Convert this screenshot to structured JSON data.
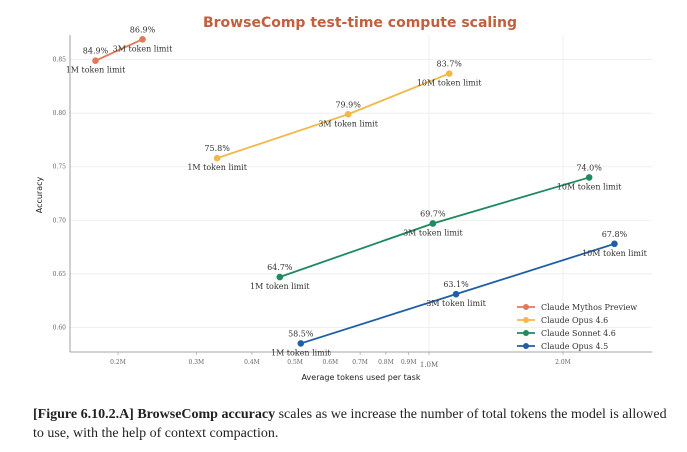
{
  "chart_data": {
    "type": "line",
    "title": "BrowseComp test-time compute scaling",
    "xlabel": "Average tokens used per task",
    "ylabel": "Accuracy",
    "xscale": "log",
    "xlim": [
      0.156,
      3.17
    ],
    "ylim": [
      0.577,
      0.873
    ],
    "x_ticks": [
      0.2,
      0.3,
      0.4,
      0.5,
      0.6,
      0.7,
      0.8,
      0.9,
      1.0,
      2.0
    ],
    "x_tick_labels": [
      "0.2M",
      "0.3M",
      "0.4M",
      "0.5M",
      "0.6M",
      "0.7M",
      "0.8M",
      "0.9M",
      "1.0M",
      "2.0M"
    ],
    "y_ticks": [
      0.6,
      0.65,
      0.7,
      0.75,
      0.8,
      0.85
    ],
    "y_tick_labels": [
      "0.60",
      "0.65",
      "0.70",
      "0.75",
      "0.80",
      "0.85"
    ],
    "grid": true,
    "legend_position": "bottom-right",
    "series": [
      {
        "name": "Claude Mythos Preview",
        "color": "#e07a5a",
        "x": [
          0.178,
          0.227
        ],
        "y": [
          0.849,
          0.869
        ],
        "value_labels": [
          "84.9%",
          "86.9%"
        ],
        "point_labels": [
          "1M token limit",
          "3M token limit"
        ]
      },
      {
        "name": "Claude Opus 4.6",
        "color": "#f2b84b",
        "x": [
          0.334,
          0.658,
          1.11
        ],
        "y": [
          0.758,
          0.799,
          0.837
        ],
        "value_labels": [
          "75.8%",
          "79.9%",
          "83.7%"
        ],
        "point_labels": [
          "1M token limit",
          "3M token limit",
          "10M token limit"
        ]
      },
      {
        "name": "Claude Sonnet 4.6",
        "color": "#1e8a5e",
        "x": [
          0.462,
          1.02,
          2.29
        ],
        "y": [
          0.647,
          0.697,
          0.74
        ],
        "value_labels": [
          "64.7%",
          "69.7%",
          "74.0%"
        ],
        "point_labels": [
          "1M token limit",
          "3M token limit",
          "10M token limit"
        ]
      },
      {
        "name": "Claude Opus 4.5",
        "color": "#1f5fa6",
        "x": [
          0.515,
          1.15,
          2.61
        ],
        "y": [
          0.585,
          0.631,
          0.678
        ],
        "value_labels": [
          "58.5%",
          "63.1%",
          "67.8%"
        ],
        "point_labels": [
          "1M token limit",
          "3M token limit",
          "10M token limit"
        ]
      }
    ]
  },
  "caption": {
    "prefix": "[Figure 6.10.2.A] BrowseComp accuracy",
    "text": " scales as we increase the number of total tokens the model is allowed to use, with the help of context compaction."
  }
}
